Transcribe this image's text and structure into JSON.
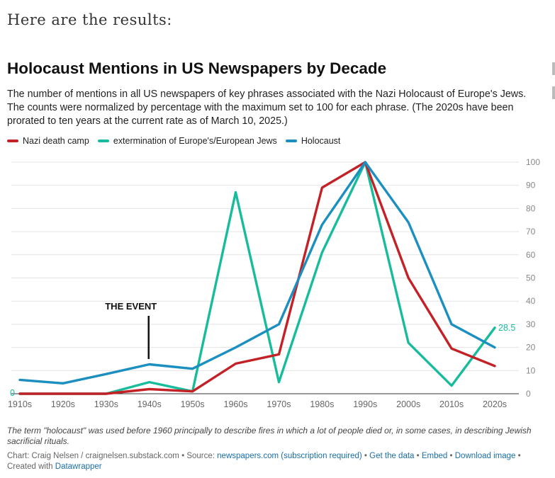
{
  "intro": "Here are the results:",
  "title": "Holocaust Mentions in US Newspapers by Decade",
  "description": "The number of mentions in all US newspapers of key phrases associated with the Nazi Holocaust of Europe's Jews. The counts were normalized by percentage with the maximum set to 100 for each phrase. (The 2020s have been prorated to ten years at the current rate as of March 10, 2025.)",
  "colors": {
    "red": "#c42127",
    "teal": "#18bc9c",
    "blue": "#1b8fbf"
  },
  "chart_data": {
    "type": "line",
    "title": "Holocaust Mentions in US Newspapers by Decade",
    "categories": [
      "1910s",
      "1920s",
      "1930s",
      "1940s",
      "1950s",
      "1960s",
      "1970s",
      "1980s",
      "1990s",
      "2000s",
      "2010s",
      "2020s"
    ],
    "ylim": [
      0,
      100
    ],
    "yticks": [
      "0",
      "10",
      "20",
      "30",
      "40",
      "50",
      "60",
      "70",
      "80",
      "90",
      "100"
    ],
    "legend_position": "top-left",
    "grid": true,
    "series": [
      {
        "name": "Nazi death camp",
        "color": "#c42127",
        "values": [
          0,
          0,
          0,
          2,
          1,
          13,
          17,
          89,
          100,
          50,
          19.5,
          12
        ]
      },
      {
        "name": "extermination of Europe's/European Jews",
        "color": "#18bc9c",
        "values": [
          0,
          0,
          0,
          5,
          1,
          87,
          5,
          61,
          100,
          22,
          3.5,
          28.5
        ]
      },
      {
        "name": "Holocaust",
        "color": "#1b8fbf",
        "values": [
          6,
          4.5,
          8.5,
          12.7,
          10.8,
          20,
          30,
          73,
          100,
          74,
          30,
          20
        ]
      }
    ],
    "annotations": [
      {
        "text": "THE EVENT",
        "x": "1940s"
      },
      {
        "text": "28.5",
        "x": "2020s",
        "series": "extermination of Europe's/European Jews"
      },
      {
        "text": "0",
        "x": "1910s"
      }
    ]
  },
  "note": "The term \"holocaust\" was used before 1960 principally to describe fires in which a lot of people died or, in some cases, in describing Jewish sacrificial rituals.",
  "credits": {
    "chart": "Chart: Craig Nelsen / craignelsen.substack.com",
    "source_prefix": "• Source:",
    "source": "newspapers.com (subscription required)",
    "get_data": "Get the data",
    "embed": "Embed",
    "download": "Download image",
    "created_with": "Created with",
    "datawrapper": "Datawrapper",
    "sep": "•"
  }
}
